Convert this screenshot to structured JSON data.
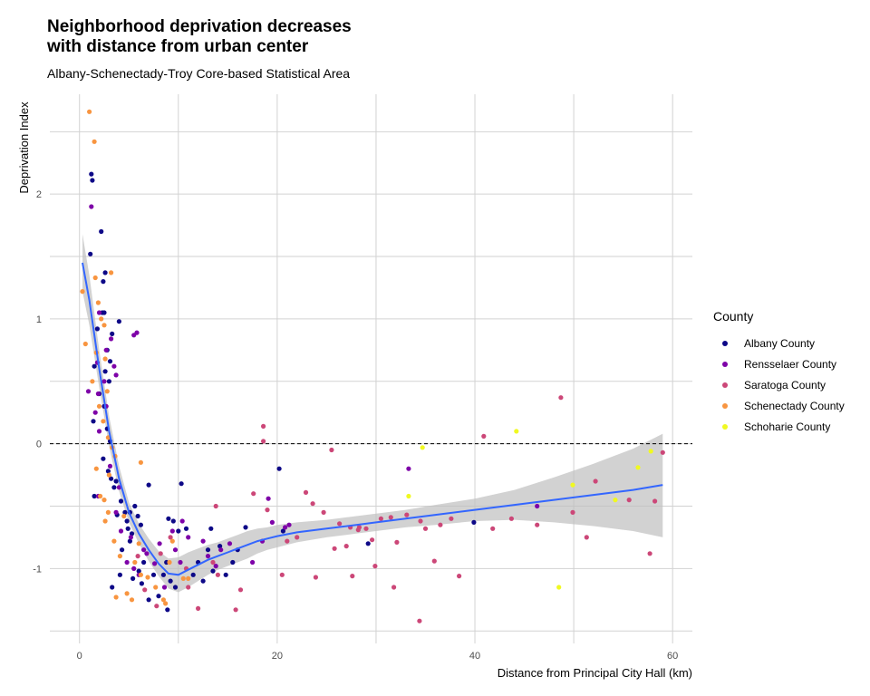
{
  "chart_data": {
    "type": "scatter",
    "title": "Neighborhood deprivation decreases\nwith distance from urban center",
    "subtitle": "Albany-Schenectady-Troy Core-based Statistical Area",
    "xlabel": "Distance from Principal City Hall (km)",
    "ylabel": "Deprivation Index",
    "xlim": [
      -3,
      62
    ],
    "ylim": [
      -1.6,
      2.8
    ],
    "x_ticks": [
      0,
      20,
      40,
      60
    ],
    "y_ticks": [
      -1,
      0,
      1,
      2
    ],
    "grid": true,
    "reference_line": {
      "y": 0,
      "style": "dashed"
    },
    "legend": {
      "title": "County",
      "position": "right"
    },
    "series": [
      {
        "name": "Albany County",
        "color": "#0d0887",
        "points": [
          [
            1.2,
            2.16
          ],
          [
            1.3,
            2.11
          ],
          [
            2.2,
            1.7
          ],
          [
            1.1,
            1.52
          ],
          [
            2.6,
            1.37
          ],
          [
            2.4,
            1.3
          ],
          [
            2.3,
            1.05
          ],
          [
            2.5,
            1.05
          ],
          [
            1.8,
            0.92
          ],
          [
            3.3,
            0.88
          ],
          [
            4,
            0.98
          ],
          [
            2.8,
            0.75
          ],
          [
            3.1,
            0.66
          ],
          [
            1.5,
            0.62
          ],
          [
            2.6,
            0.58
          ],
          [
            3,
            0.5
          ],
          [
            2,
            0.4
          ],
          [
            2.5,
            0.3
          ],
          [
            1.4,
            0.18
          ],
          [
            2.8,
            0.12
          ],
          [
            3.1,
            0.02
          ],
          [
            2.4,
            -0.12
          ],
          [
            2.9,
            -0.22
          ],
          [
            3.2,
            -0.28
          ],
          [
            3.7,
            -0.3
          ],
          [
            3.5,
            -0.35
          ],
          [
            1.5,
            -0.42
          ],
          [
            4.2,
            -0.46
          ],
          [
            4.6,
            -0.55
          ],
          [
            3.8,
            -0.57
          ],
          [
            5.1,
            -0.55
          ],
          [
            5.6,
            -0.5
          ],
          [
            4.8,
            -0.62
          ],
          [
            5.9,
            -0.58
          ],
          [
            6.2,
            -0.65
          ],
          [
            4.9,
            -0.68
          ],
          [
            5.3,
            -0.72
          ],
          [
            5.1,
            -0.78
          ],
          [
            4.3,
            -0.85
          ],
          [
            7,
            -0.33
          ],
          [
            6.5,
            -0.95
          ],
          [
            6,
            -1.02
          ],
          [
            4.1,
            -1.05
          ],
          [
            3.3,
            -1.15
          ],
          [
            5.4,
            -1.08
          ],
          [
            6.3,
            -1.12
          ],
          [
            7.5,
            -1.05
          ],
          [
            7,
            -1.25
          ],
          [
            8,
            -1.22
          ],
          [
            8.5,
            -1.05
          ],
          [
            9,
            -0.6
          ],
          [
            9.5,
            -0.62
          ],
          [
            8.8,
            -0.95
          ],
          [
            9.2,
            -1.1
          ],
          [
            9.7,
            -1.15
          ],
          [
            8.9,
            -1.33
          ],
          [
            10,
            -0.7
          ],
          [
            10.3,
            -0.32
          ],
          [
            10.8,
            -0.68
          ],
          [
            11.5,
            -1.05
          ],
          [
            12,
            -0.95
          ],
          [
            12.5,
            -1.1
          ],
          [
            13,
            -0.85
          ],
          [
            13.5,
            -1.02
          ],
          [
            14.2,
            -0.82
          ],
          [
            14.8,
            -1.05
          ],
          [
            15.5,
            -0.95
          ],
          [
            16,
            -0.85
          ],
          [
            16.8,
            -0.67
          ],
          [
            13.3,
            -0.68
          ],
          [
            20.2,
            -0.2
          ],
          [
            20.6,
            -0.7
          ],
          [
            29.2,
            -0.8
          ],
          [
            39.9,
            -0.63
          ]
        ]
      },
      {
        "name": "Rensselaer County",
        "color": "#7e03a8",
        "points": [
          [
            1.2,
            1.9
          ],
          [
            2,
            1.05
          ],
          [
            5.8,
            0.89
          ],
          [
            5.5,
            0.87
          ],
          [
            3.2,
            0.84
          ],
          [
            2.7,
            0.75
          ],
          [
            1.8,
            0.65
          ],
          [
            3.5,
            0.62
          ],
          [
            3.7,
            0.55
          ],
          [
            2.5,
            0.5
          ],
          [
            0.9,
            0.42
          ],
          [
            1.9,
            0.4
          ],
          [
            2.7,
            0.3
          ],
          [
            1.6,
            0.25
          ],
          [
            2,
            0.1
          ],
          [
            3.1,
            -0.18
          ],
          [
            4,
            -0.35
          ],
          [
            1.9,
            -0.42
          ],
          [
            3.7,
            -0.55
          ],
          [
            4.2,
            -0.7
          ],
          [
            5.2,
            -0.75
          ],
          [
            6.5,
            -0.85
          ],
          [
            4.8,
            -0.95
          ],
          [
            5.5,
            -1
          ],
          [
            6,
            -1.05
          ],
          [
            6.8,
            -0.88
          ],
          [
            7.6,
            -0.96
          ],
          [
            8.1,
            -0.8
          ],
          [
            8.6,
            -1.15
          ],
          [
            9.4,
            -0.7
          ],
          [
            9.7,
            -0.85
          ],
          [
            10.4,
            -0.62
          ],
          [
            10.2,
            -0.95
          ],
          [
            11,
            -0.75
          ],
          [
            12.5,
            -0.78
          ],
          [
            13,
            -0.9
          ],
          [
            13.8,
            -0.98
          ],
          [
            14.3,
            -0.85
          ],
          [
            15.2,
            -0.8
          ],
          [
            17.5,
            -0.95
          ],
          [
            18.5,
            -0.78
          ],
          [
            19.5,
            -0.63
          ],
          [
            19.1,
            -0.44
          ],
          [
            20.8,
            -0.67
          ],
          [
            21.2,
            -0.65
          ],
          [
            33.3,
            -0.2
          ],
          [
            46.3,
            -0.5
          ]
        ]
      },
      {
        "name": "Saratoga County",
        "color": "#cc4778",
        "points": [
          [
            18.6,
            0.14
          ],
          [
            18.6,
            0.02
          ],
          [
            25.5,
            -0.05
          ],
          [
            17.6,
            -0.4
          ],
          [
            22.9,
            -0.39
          ],
          [
            23.6,
            -0.48
          ],
          [
            19,
            -0.53
          ],
          [
            24.7,
            -0.55
          ],
          [
            26.3,
            -0.64
          ],
          [
            27.4,
            -0.67
          ],
          [
            28.3,
            -0.67
          ],
          [
            28.2,
            -0.69
          ],
          [
            29,
            -0.68
          ],
          [
            21,
            -0.78
          ],
          [
            22,
            -0.75
          ],
          [
            25.8,
            -0.84
          ],
          [
            27,
            -0.82
          ],
          [
            29.6,
            -0.77
          ],
          [
            30.5,
            -0.6
          ],
          [
            31.5,
            -0.59
          ],
          [
            32.1,
            -0.79
          ],
          [
            33.1,
            -0.57
          ],
          [
            34.5,
            -0.62
          ],
          [
            35,
            -0.68
          ],
          [
            36.5,
            -0.65
          ],
          [
            37.6,
            -0.6
          ],
          [
            40.9,
            0.06
          ],
          [
            41.8,
            -0.68
          ],
          [
            43.7,
            -0.6
          ],
          [
            46.3,
            -0.65
          ],
          [
            48.7,
            0.37
          ],
          [
            49.9,
            -0.55
          ],
          [
            51.3,
            -0.75
          ],
          [
            52.2,
            -0.3
          ],
          [
            55.6,
            -0.45
          ],
          [
            57.7,
            -0.88
          ],
          [
            58.2,
            -0.46
          ],
          [
            59,
            -0.07
          ],
          [
            20.5,
            -1.05
          ],
          [
            23.9,
            -1.07
          ],
          [
            27.6,
            -1.06
          ],
          [
            29.9,
            -0.98
          ],
          [
            31.8,
            -1.15
          ],
          [
            34.4,
            -1.42
          ],
          [
            35.9,
            -0.94
          ],
          [
            38.4,
            -1.06
          ],
          [
            12,
            -1.32
          ],
          [
            13.5,
            -0.95
          ],
          [
            14,
            -1.05
          ],
          [
            15.8,
            -1.33
          ],
          [
            16.3,
            -1.17
          ],
          [
            11,
            -1.15
          ],
          [
            10.8,
            -1.0
          ],
          [
            9.2,
            -0.75
          ],
          [
            8.2,
            -0.88
          ],
          [
            6.6,
            -1.17
          ],
          [
            7.8,
            -1.3
          ],
          [
            5.9,
            -0.9
          ],
          [
            13.8,
            -0.5
          ]
        ]
      },
      {
        "name": "Schenectady County",
        "color": "#f89540",
        "points": [
          [
            1,
            2.66
          ],
          [
            1.5,
            2.42
          ],
          [
            1.6,
            1.33
          ],
          [
            3.2,
            1.37
          ],
          [
            0.3,
            1.22
          ],
          [
            0.6,
            0.8
          ],
          [
            1.9,
            1.13
          ],
          [
            2.2,
            1.0
          ],
          [
            2.5,
            0.95
          ],
          [
            1.7,
            0.73
          ],
          [
            2.6,
            0.68
          ],
          [
            1.3,
            0.5
          ],
          [
            2.8,
            0.42
          ],
          [
            2,
            0.3
          ],
          [
            2.4,
            0.18
          ],
          [
            2.9,
            0.05
          ],
          [
            3.3,
            -0.03
          ],
          [
            3.6,
            -0.1
          ],
          [
            1.7,
            -0.2
          ],
          [
            3,
            -0.25
          ],
          [
            2.5,
            -0.45
          ],
          [
            2.9,
            -0.55
          ],
          [
            2.6,
            -0.62
          ],
          [
            3.5,
            -0.78
          ],
          [
            4.1,
            -0.9
          ],
          [
            3.7,
            -1.23
          ],
          [
            4.8,
            -1.2
          ],
          [
            5.3,
            -1.25
          ],
          [
            5.6,
            -0.95
          ],
          [
            6,
            -0.8
          ],
          [
            6.2,
            -1.05
          ],
          [
            6.9,
            -1.07
          ],
          [
            7.7,
            -1.15
          ],
          [
            8.5,
            -1.25
          ],
          [
            8.7,
            -1.28
          ],
          [
            9.1,
            -0.95
          ],
          [
            9.4,
            -0.78
          ],
          [
            10.5,
            -1.08
          ],
          [
            11,
            -1.08
          ],
          [
            6.2,
            -0.15
          ],
          [
            2.1,
            -0.42
          ],
          [
            4.5,
            -0.58
          ]
        ]
      },
      {
        "name": "Schoharie County",
        "color": "#f0f921",
        "points": [
          [
            44.2,
            0.1
          ],
          [
            34.7,
            -0.03
          ],
          [
            33.3,
            -0.42
          ],
          [
            49.9,
            -0.33
          ],
          [
            54.2,
            -0.45
          ],
          [
            56.5,
            -0.19
          ],
          [
            57.8,
            -0.06
          ],
          [
            48.5,
            -1.15
          ]
        ]
      }
    ],
    "smooth": {
      "name": "loess",
      "color": "#3366ff",
      "x": [
        0.3,
        1,
        2,
        3,
        4,
        5,
        6,
        7,
        8,
        9,
        10,
        11,
        12,
        13,
        14,
        15,
        16,
        17,
        18,
        19,
        20,
        22,
        25,
        28,
        30,
        33,
        36,
        40,
        44,
        48,
        52,
        56,
        59
      ],
      "y": [
        1.45,
        1.15,
        0.6,
        0.1,
        -0.28,
        -0.55,
        -0.72,
        -0.85,
        -0.96,
        -1.04,
        -1.05,
        -1.01,
        -0.97,
        -0.93,
        -0.9,
        -0.87,
        -0.84,
        -0.81,
        -0.78,
        -0.76,
        -0.74,
        -0.71,
        -0.68,
        -0.65,
        -0.63,
        -0.6,
        -0.57,
        -0.53,
        -0.49,
        -0.45,
        -0.41,
        -0.37,
        -0.33
      ],
      "lo": [
        1.22,
        0.95,
        0.45,
        -0.02,
        -0.38,
        -0.63,
        -0.8,
        -0.94,
        -1.06,
        -1.16,
        -1.19,
        -1.15,
        -1.1,
        -1.05,
        -1.01,
        -0.98,
        -0.95,
        -0.92,
        -0.88,
        -0.85,
        -0.83,
        -0.79,
        -0.75,
        -0.72,
        -0.7,
        -0.67,
        -0.65,
        -0.62,
        -0.61,
        -0.63,
        -0.66,
        -0.7,
        -0.75
      ],
      "hi": [
        1.68,
        1.35,
        0.75,
        0.22,
        -0.18,
        -0.47,
        -0.64,
        -0.76,
        -0.86,
        -0.92,
        -0.91,
        -0.87,
        -0.84,
        -0.81,
        -0.79,
        -0.76,
        -0.73,
        -0.7,
        -0.68,
        -0.67,
        -0.65,
        -0.63,
        -0.61,
        -0.58,
        -0.56,
        -0.53,
        -0.49,
        -0.44,
        -0.37,
        -0.27,
        -0.16,
        -0.04,
        0.08
      ]
    }
  }
}
